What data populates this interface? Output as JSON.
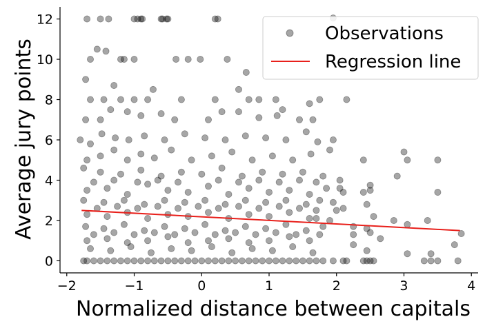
{
  "chart_data": {
    "type": "scatter",
    "title": "",
    "xlabel": "Normalized distance between capitals",
    "ylabel": "Average jury points",
    "xlim": [
      -2.1,
      4.1
    ],
    "ylim": [
      -0.6,
      12.6
    ],
    "xticks": [
      -2,
      -1,
      0,
      1,
      2,
      3,
      4
    ],
    "xtick_labels": [
      "−2",
      "−1",
      "0",
      "1",
      "2",
      "3",
      "4"
    ],
    "yticks": [
      0,
      2,
      4,
      6,
      8,
      10,
      12
    ],
    "ytick_labels": [
      "0",
      "2",
      "4",
      "6",
      "8",
      "10",
      "12"
    ],
    "grid": false,
    "legend": {
      "placement": "top-right",
      "entries": [
        {
          "label": "Observations",
          "kind": "marker",
          "color": "#000000"
        },
        {
          "label": "Regression line",
          "kind": "line",
          "color": "#e8201b"
        }
      ]
    },
    "series": [
      {
        "name": "Observations",
        "type": "scatter",
        "color": "#000000",
        "opacity": 0.35,
        "points": [
          [
            -1.7,
            12
          ],
          [
            -1.5,
            12
          ],
          [
            -1.38,
            12
          ],
          [
            -1.0,
            12
          ],
          [
            -0.95,
            12
          ],
          [
            -0.9,
            12
          ],
          [
            -0.88,
            12
          ],
          [
            -0.6,
            12
          ],
          [
            -0.58,
            12
          ],
          [
            -0.52,
            12
          ],
          [
            -0.5,
            12
          ],
          [
            0.2,
            12
          ],
          [
            0.24,
            12
          ],
          [
            1.95,
            12.05
          ],
          [
            -1.55,
            10.5
          ],
          [
            -1.42,
            10.4
          ],
          [
            -1.65,
            10
          ],
          [
            -1.2,
            10
          ],
          [
            -1.15,
            10
          ],
          [
            -1.0,
            10
          ],
          [
            -0.2,
            10
          ],
          [
            -0.02,
            10
          ],
          [
            -0.38,
            10
          ],
          [
            0.38,
            10
          ],
          [
            0.66,
            9.35
          ],
          [
            -1.72,
            9
          ],
          [
            -1.3,
            8.7
          ],
          [
            -1.65,
            8
          ],
          [
            -1.45,
            8
          ],
          [
            -1.2,
            8
          ],
          [
            -1.0,
            8
          ],
          [
            -0.8,
            8
          ],
          [
            -0.72,
            8.5
          ],
          [
            -0.3,
            8
          ],
          [
            0.2,
            8
          ],
          [
            0.55,
            8.5
          ],
          [
            0.7,
            8
          ],
          [
            1.1,
            8
          ],
          [
            1.2,
            7.5
          ],
          [
            1.6,
            7.8
          ],
          [
            1.75,
            8
          ],
          [
            2.15,
            8
          ],
          [
            0.85,
            8
          ],
          [
            -1.72,
            7
          ],
          [
            -1.5,
            7
          ],
          [
            -1.35,
            7.5
          ],
          [
            -1.1,
            7.4
          ],
          [
            -0.9,
            7.2
          ],
          [
            -0.6,
            7.3
          ],
          [
            -0.4,
            7
          ],
          [
            0.1,
            7
          ],
          [
            0.3,
            7.4
          ],
          [
            0.55,
            7.4
          ],
          [
            0.85,
            7.1
          ],
          [
            1.12,
            7.2
          ],
          [
            1.45,
            7.0
          ],
          [
            1.65,
            7.0
          ],
          [
            -1.8,
            6
          ],
          [
            -1.65,
            5.8
          ],
          [
            -1.48,
            6.3
          ],
          [
            -1.28,
            6.1
          ],
          [
            -1.08,
            6.0
          ],
          [
            -0.85,
            6.2
          ],
          [
            -0.55,
            6.0
          ],
          [
            -0.25,
            6.3
          ],
          [
            0.05,
            6.1
          ],
          [
            0.35,
            6.0
          ],
          [
            0.65,
            6.2
          ],
          [
            0.95,
            6.1
          ],
          [
            1.25,
            6.0
          ],
          [
            1.55,
            6.4
          ],
          [
            1.72,
            5.9
          ],
          [
            1.95,
            6.0
          ],
          [
            -1.7,
            5.0
          ],
          [
            -1.5,
            5.2
          ],
          [
            -1.3,
            5.5
          ],
          [
            -1.1,
            5.0
          ],
          [
            -0.9,
            5.3
          ],
          [
            -0.7,
            5.1
          ],
          [
            -0.45,
            5.5
          ],
          [
            -0.15,
            5.0
          ],
          [
            0.15,
            5.2
          ],
          [
            0.45,
            5.4
          ],
          [
            0.75,
            5.0
          ],
          [
            1.05,
            5.2
          ],
          [
            1.35,
            5.0
          ],
          [
            1.62,
            5.3
          ],
          [
            1.9,
            5.5
          ],
          [
            2.4,
            5.0
          ],
          [
            3.0,
            5.4
          ],
          [
            3.05,
            5.0
          ],
          [
            3.5,
            5.0
          ],
          [
            -1.75,
            4.6
          ],
          [
            -1.5,
            4.4
          ],
          [
            -1.2,
            4.3
          ],
          [
            -0.9,
            4.5
          ],
          [
            -0.6,
            4.2
          ],
          [
            -0.3,
            4.4
          ],
          [
            0.0,
            4.3
          ],
          [
            0.3,
            4.6
          ],
          [
            0.6,
            4.2
          ],
          [
            0.9,
            4.4
          ],
          [
            1.2,
            4.3
          ],
          [
            1.5,
            4.4
          ],
          [
            1.8,
            4.2
          ],
          [
            2.05,
            4.0
          ],
          [
            -1.7,
            3.5
          ],
          [
            -1.4,
            3.6
          ],
          [
            -1.1,
            3.3
          ],
          [
            -0.8,
            3.8
          ],
          [
            -0.5,
            3.5
          ],
          [
            -0.2,
            3.4
          ],
          [
            0.1,
            3.7
          ],
          [
            0.4,
            3.3
          ],
          [
            0.7,
            3.6
          ],
          [
            1.0,
            3.4
          ],
          [
            1.3,
            3.5
          ],
          [
            1.6,
            3.3
          ],
          [
            1.85,
            3.6
          ],
          [
            2.1,
            3.4
          ],
          [
            2.5,
            3.75
          ],
          [
            2.5,
            3.5
          ],
          [
            2.9,
            4.2
          ],
          [
            3.5,
            3.4
          ],
          [
            -1.75,
            3.0
          ],
          [
            -1.45,
            2.9
          ],
          [
            -1.15,
            3.0
          ],
          [
            -0.85,
            2.8
          ],
          [
            -0.55,
            3.0
          ],
          [
            -0.25,
            2.9
          ],
          [
            0.05,
            3.0
          ],
          [
            0.35,
            2.8
          ],
          [
            0.65,
            3.0
          ],
          [
            0.95,
            2.9
          ],
          [
            1.25,
            3.0
          ],
          [
            1.55,
            2.8
          ],
          [
            1.75,
            3.0
          ],
          [
            2.1,
            2.6
          ],
          [
            2.45,
            2.8
          ],
          [
            2.55,
            2.2
          ],
          [
            -1.7,
            2.3
          ],
          [
            -1.4,
            2.2
          ],
          [
            -1.1,
            2.4
          ],
          [
            -0.8,
            2.1
          ],
          [
            -0.5,
            2.3
          ],
          [
            -0.2,
            2.2
          ],
          [
            0.1,
            2.4
          ],
          [
            0.4,
            2.1
          ],
          [
            0.7,
            2.3
          ],
          [
            1.0,
            2.2
          ],
          [
            1.3,
            2.4
          ],
          [
            1.6,
            2.1
          ],
          [
            1.9,
            2.0
          ],
          [
            2.0,
            2.5
          ],
          [
            -1.72,
            1.7
          ],
          [
            -1.45,
            1.6
          ],
          [
            -1.15,
            1.8
          ],
          [
            -0.85,
            1.5
          ],
          [
            -0.55,
            1.7
          ],
          [
            -0.25,
            1.6
          ],
          [
            0.05,
            1.8
          ],
          [
            0.35,
            1.5
          ],
          [
            0.65,
            1.7
          ],
          [
            0.95,
            1.6
          ],
          [
            1.25,
            1.8
          ],
          [
            1.55,
            1.5
          ],
          [
            1.8,
            1.7
          ],
          [
            2.25,
            1.7
          ],
          [
            2.45,
            1.6
          ],
          [
            2.85,
            2.0
          ],
          [
            3.35,
            2.0
          ],
          [
            3.05,
            1.8
          ],
          [
            -1.7,
            1.0
          ],
          [
            -1.4,
            1.1
          ],
          [
            -1.1,
            0.9
          ],
          [
            -0.8,
            1.0
          ],
          [
            -0.5,
            1.2
          ],
          [
            -0.2,
            0.9
          ],
          [
            0.1,
            1.0
          ],
          [
            0.4,
            1.1
          ],
          [
            0.7,
            0.9
          ],
          [
            1.0,
            1.0
          ],
          [
            1.3,
            1.2
          ],
          [
            1.6,
            1.0
          ],
          [
            1.75,
            1.3
          ],
          [
            2.25,
            1.3
          ],
          [
            2.5,
            1.4
          ],
          [
            2.65,
            1.1
          ],
          [
            -1.65,
            0.6
          ],
          [
            -1.35,
            0.5
          ],
          [
            -1.05,
            0.7
          ],
          [
            -0.75,
            0.4
          ],
          [
            -0.45,
            0.6
          ],
          [
            -0.15,
            0.5
          ],
          [
            0.15,
            0.7
          ],
          [
            0.45,
            0.4
          ],
          [
            0.75,
            0.6
          ],
          [
            1.05,
            0.5
          ],
          [
            1.35,
            0.7
          ],
          [
            1.65,
            0.4
          ],
          [
            2.25,
            0.8
          ],
          [
            2.45,
            0.5
          ],
          [
            3.05,
            0.35
          ],
          [
            3.4,
            0.35
          ],
          [
            3.75,
            0.8
          ],
          [
            3.85,
            1.35
          ],
          [
            -1.75,
            0
          ],
          [
            -1.7,
            0
          ],
          [
            -1.6,
            0
          ],
          [
            -1.5,
            0
          ],
          [
            -1.4,
            0
          ],
          [
            -1.3,
            0
          ],
          [
            -1.2,
            0
          ],
          [
            -1.1,
            0
          ],
          [
            -1.0,
            0
          ],
          [
            -0.9,
            0
          ],
          [
            -0.8,
            0
          ],
          [
            -0.7,
            0
          ],
          [
            -0.6,
            0
          ],
          [
            -0.5,
            0
          ],
          [
            -0.4,
            0
          ],
          [
            -0.3,
            0
          ],
          [
            -0.2,
            0
          ],
          [
            -0.1,
            0
          ],
          [
            0.0,
            0
          ],
          [
            0.1,
            0
          ],
          [
            0.2,
            0
          ],
          [
            0.3,
            0
          ],
          [
            0.4,
            0
          ],
          [
            0.5,
            0
          ],
          [
            0.6,
            0
          ],
          [
            0.7,
            0
          ],
          [
            0.8,
            0
          ],
          [
            0.9,
            0
          ],
          [
            1.0,
            0
          ],
          [
            1.1,
            0
          ],
          [
            1.2,
            0
          ],
          [
            1.3,
            0
          ],
          [
            1.4,
            0
          ],
          [
            1.5,
            0
          ],
          [
            1.6,
            0
          ],
          [
            1.7,
            0
          ],
          [
            1.8,
            0
          ],
          [
            1.95,
            0
          ],
          [
            2.1,
            0
          ],
          [
            2.15,
            0
          ],
          [
            2.4,
            0
          ],
          [
            2.45,
            0
          ],
          [
            2.5,
            0
          ],
          [
            2.55,
            0
          ],
          [
            3.3,
            0
          ],
          [
            3.4,
            0
          ],
          [
            3.5,
            0
          ],
          [
            3.8,
            0
          ],
          [
            -1.6,
            3.9
          ],
          [
            -1.3,
            4.0
          ],
          [
            -0.95,
            3.9
          ],
          [
            -0.65,
            4.0
          ],
          [
            -0.35,
            3.9
          ],
          [
            0.25,
            4.0
          ],
          [
            0.55,
            3.9
          ],
          [
            0.85,
            4.0
          ],
          [
            1.15,
            3.9
          ],
          [
            1.45,
            4.0
          ],
          [
            1.7,
            3.9
          ],
          [
            2.4,
            3.4
          ],
          [
            2.05,
            3.6
          ],
          [
            1.95,
            2.9
          ],
          [
            -1.55,
            2.6
          ],
          [
            -1.25,
            2.7
          ],
          [
            -0.95,
            2.6
          ],
          [
            -0.65,
            2.7
          ],
          [
            -0.35,
            2.6
          ],
          [
            -0.05,
            2.7
          ],
          [
            0.25,
            2.6
          ],
          [
            0.55,
            2.7
          ],
          [
            0.85,
            2.6
          ],
          [
            1.15,
            2.7
          ],
          [
            1.45,
            2.6
          ],
          [
            1.7,
            2.5
          ],
          [
            -1.6,
            1.3
          ],
          [
            -1.3,
            1.4
          ],
          [
            -1.0,
            1.3
          ],
          [
            -0.7,
            1.4
          ],
          [
            -0.4,
            1.3
          ],
          [
            -0.1,
            1.4
          ],
          [
            0.2,
            1.3
          ],
          [
            0.5,
            1.4
          ],
          [
            0.8,
            1.3
          ],
          [
            1.1,
            1.4
          ],
          [
            1.4,
            1.3
          ],
          [
            1.7,
            2.1
          ]
        ]
      },
      {
        "name": "Regression line",
        "type": "line",
        "color": "#e8201b",
        "points": [
          [
            -1.78,
            2.5
          ],
          [
            3.83,
            1.5
          ]
        ]
      }
    ]
  }
}
